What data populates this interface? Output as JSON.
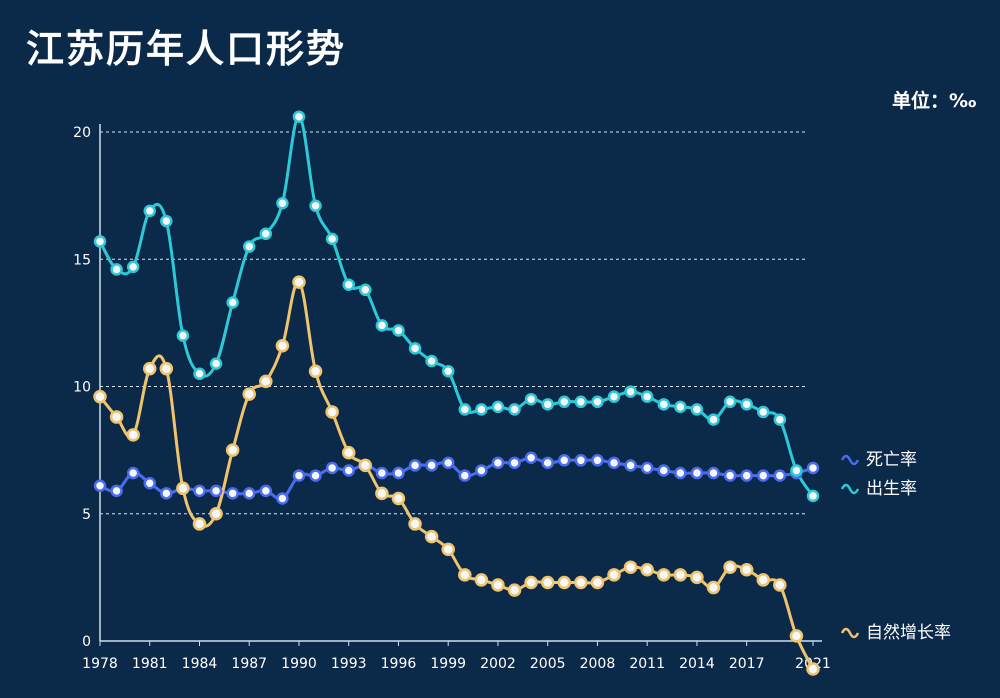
{
  "chart_data": {
    "type": "line",
    "title": "江苏历年人口形势",
    "unit": "单位：‰",
    "x": [
      1978,
      1979,
      1980,
      1981,
      1982,
      1983,
      1984,
      1985,
      1986,
      1987,
      1988,
      1989,
      1990,
      1991,
      1992,
      1993,
      1994,
      1995,
      1996,
      1997,
      1998,
      1999,
      2000,
      2001,
      2002,
      2003,
      2004,
      2005,
      2006,
      2007,
      2008,
      2009,
      2010,
      2011,
      2012,
      2013,
      2014,
      2015,
      2016,
      2017,
      2018,
      2019,
      2020,
      2021
    ],
    "x_tick_labels": [
      "1978",
      "1981",
      "1984",
      "1987",
      "1990",
      "1993",
      "1996",
      "1999",
      "2002",
      "2005",
      "2008",
      "2011",
      "2014",
      "2017",
      "2021"
    ],
    "ylim": [
      0,
      20
    ],
    "y_ticks": [
      0,
      5,
      10,
      15,
      20
    ],
    "grid": true,
    "legend": "right",
    "series": [
      {
        "name": "死亡率",
        "color": "#4a6cf0",
        "values": [
          6.1,
          5.9,
          6.6,
          6.2,
          5.8,
          6.0,
          5.9,
          5.9,
          5.8,
          5.8,
          5.9,
          5.6,
          6.5,
          6.5,
          6.8,
          6.7,
          6.9,
          6.6,
          6.6,
          6.9,
          6.9,
          7.0,
          6.5,
          6.7,
          7.0,
          7.0,
          7.2,
          7.0,
          7.1,
          7.1,
          7.1,
          7.0,
          6.9,
          6.8,
          6.7,
          6.6,
          6.6,
          6.6,
          6.5,
          6.5,
          6.5,
          6.5,
          6.6,
          6.8
        ]
      },
      {
        "name": "出生率",
        "color": "#2ec9d6",
        "values": [
          15.7,
          14.6,
          14.7,
          16.9,
          16.5,
          12.0,
          10.5,
          10.9,
          13.3,
          15.5,
          16.0,
          17.2,
          20.6,
          17.1,
          15.8,
          14.0,
          13.8,
          12.4,
          12.2,
          11.5,
          11.0,
          10.6,
          9.1,
          9.1,
          9.2,
          9.1,
          9.5,
          9.3,
          9.4,
          9.4,
          9.4,
          9.6,
          9.8,
          9.6,
          9.3,
          9.2,
          9.1,
          8.7,
          9.4,
          9.3,
          9.0,
          8.7,
          6.7,
          5.7
        ]
      },
      {
        "name": "自然增长率",
        "color": "#f0c46c",
        "values": [
          9.6,
          8.8,
          8.1,
          10.7,
          10.7,
          6.0,
          4.6,
          5.0,
          7.5,
          9.7,
          10.2,
          11.6,
          14.1,
          10.6,
          9.0,
          7.4,
          6.9,
          5.8,
          5.6,
          4.6,
          4.1,
          3.6,
          2.6,
          2.4,
          2.2,
          2.0,
          2.3,
          2.3,
          2.3,
          2.3,
          2.3,
          2.6,
          2.9,
          2.8,
          2.6,
          2.6,
          2.5,
          2.1,
          2.9,
          2.8,
          2.4,
          2.2,
          0.2,
          -1.1
        ]
      }
    ]
  }
}
